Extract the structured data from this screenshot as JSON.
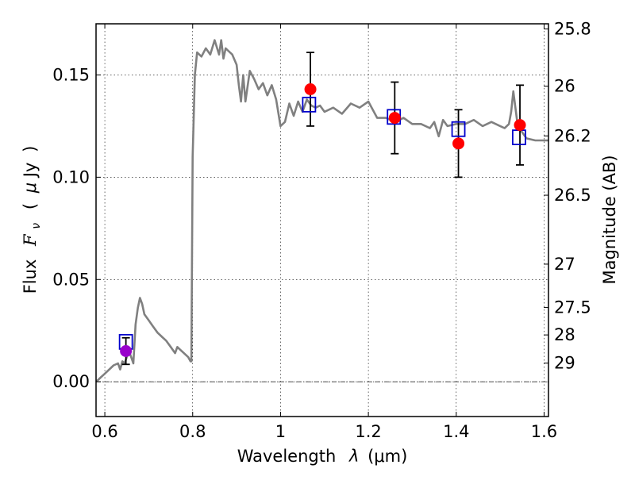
{
  "chart_data": {
    "type": "scatter",
    "xlabel": "Wavelength  λ (μm)",
    "ylabel": "Flux  Fν  ( μJy )",
    "ylabel_parts": {
      "prefix": "Flux",
      "symbol": "F",
      "subscript": "ν",
      "open": "(",
      "mu": "μ",
      "unit": "Jy",
      "close": ")"
    },
    "xlabel_parts": {
      "prefix": "Wavelength",
      "symbol": "λ",
      "unit": "(μm)"
    },
    "y2label": "Magnitude (AB)",
    "xlim": [
      0.58,
      1.61
    ],
    "ylim": [
      -0.017,
      0.175
    ],
    "grid": true,
    "x_ticks": [
      0.6,
      0.8,
      1.0,
      1.2,
      1.4,
      1.6
    ],
    "x_tick_labels": [
      "0.6",
      "0.8",
      "1",
      "1.2",
      "1.4",
      "1.6"
    ],
    "y_ticks": [
      0.0,
      0.05,
      0.1,
      0.15
    ],
    "y_tick_labels": [
      "0.00",
      "0.05",
      "0.10",
      "0.15"
    ],
    "y2_ticks": [
      {
        "label": "25.8",
        "flux": 0.1725
      },
      {
        "label": "26",
        "flux": 0.1445
      },
      {
        "label": "26.2",
        "flux": 0.1202
      },
      {
        "label": "26.5",
        "flux": 0.0912
      },
      {
        "label": "27",
        "flux": 0.0575
      },
      {
        "label": "27.5",
        "flux": 0.0363
      },
      {
        "label": "28",
        "flux": 0.0229
      },
      {
        "label": "29",
        "flux": 0.0091
      }
    ],
    "model_spectrum": {
      "color": "#808080",
      "x": [
        0.58,
        0.6,
        0.62,
        0.63,
        0.635,
        0.64,
        0.645,
        0.65,
        0.655,
        0.66,
        0.665,
        0.67,
        0.675,
        0.68,
        0.685,
        0.69,
        0.7,
        0.71,
        0.72,
        0.73,
        0.74,
        0.75,
        0.76,
        0.765,
        0.77,
        0.78,
        0.79,
        0.795,
        0.797,
        0.8,
        0.805,
        0.81,
        0.82,
        0.83,
        0.84,
        0.85,
        0.86,
        0.865,
        0.87,
        0.875,
        0.88,
        0.89,
        0.9,
        0.905,
        0.91,
        0.915,
        0.92,
        0.93,
        0.94,
        0.95,
        0.96,
        0.97,
        0.98,
        0.99,
        1.0,
        1.01,
        1.02,
        1.03,
        1.04,
        1.05,
        1.06,
        1.07,
        1.08,
        1.09,
        1.1,
        1.12,
        1.14,
        1.16,
        1.18,
        1.2,
        1.22,
        1.24,
        1.26,
        1.28,
        1.3,
        1.32,
        1.34,
        1.35,
        1.36,
        1.37,
        1.38,
        1.4,
        1.42,
        1.44,
        1.46,
        1.48,
        1.5,
        1.51,
        1.52,
        1.525,
        1.53,
        1.54,
        1.56,
        1.58,
        1.6,
        1.61
      ],
      "y": [
        0.0,
        0.004,
        0.008,
        0.009,
        0.006,
        0.01,
        0.009,
        0.012,
        0.015,
        0.012,
        0.009,
        0.028,
        0.036,
        0.041,
        0.038,
        0.033,
        0.03,
        0.027,
        0.024,
        0.022,
        0.02,
        0.017,
        0.014,
        0.017,
        0.016,
        0.014,
        0.012,
        0.01,
        0.01,
        0.11,
        0.15,
        0.161,
        0.159,
        0.163,
        0.16,
        0.167,
        0.16,
        0.167,
        0.158,
        0.163,
        0.162,
        0.16,
        0.155,
        0.145,
        0.137,
        0.15,
        0.137,
        0.152,
        0.148,
        0.143,
        0.146,
        0.14,
        0.145,
        0.138,
        0.125,
        0.127,
        0.136,
        0.13,
        0.137,
        0.132,
        0.138,
        0.135,
        0.134,
        0.135,
        0.132,
        0.134,
        0.131,
        0.136,
        0.134,
        0.137,
        0.129,
        0.129,
        0.127,
        0.129,
        0.126,
        0.126,
        0.124,
        0.127,
        0.12,
        0.128,
        0.125,
        0.126,
        0.126,
        0.128,
        0.125,
        0.127,
        0.125,
        0.124,
        0.126,
        0.132,
        0.142,
        0.125,
        0.119,
        0.118,
        0.118,
        0.118
      ]
    },
    "series": [
      {
        "marker": "square",
        "color": "#0000cc",
        "x": [
          0.648,
          1.065,
          1.258,
          1.405,
          1.543
        ],
        "y": [
          0.0195,
          0.1355,
          0.1295,
          0.1235,
          0.1195
        ]
      },
      {
        "marker": "circle",
        "color": "#ff0000",
        "points_color": [
          "#9900cc",
          "#ff0000",
          "#ff0000",
          "#ff0000",
          "#ff0000"
        ],
        "x": [
          0.648,
          1.068,
          1.26,
          1.405,
          1.545
        ],
        "y": [
          0.015,
          0.143,
          0.129,
          0.1165,
          0.1255
        ],
        "yerr": [
          0.0065,
          0.018,
          0.0175,
          0.0165,
          0.0195
        ]
      }
    ],
    "zero_line": true
  }
}
